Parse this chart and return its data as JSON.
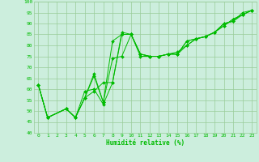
{
  "xlabel": "Humidité relative (%)",
  "bg_color": "#cceedd",
  "grid_color": "#99cc99",
  "line_color": "#00bb00",
  "xlim": [
    -0.5,
    23.5
  ],
  "ylim": [
    40,
    100
  ],
  "yticks": [
    40,
    45,
    50,
    55,
    60,
    65,
    70,
    75,
    80,
    85,
    90,
    95,
    100
  ],
  "xticks": [
    0,
    1,
    2,
    3,
    4,
    5,
    6,
    7,
    8,
    9,
    10,
    11,
    12,
    13,
    14,
    15,
    16,
    17,
    18,
    19,
    20,
    21,
    22,
    23
  ],
  "series": [
    [
      62,
      47,
      null,
      51,
      47,
      56,
      67,
      54,
      82,
      85,
      85,
      76,
      75,
      75,
      76,
      76,
      82,
      83,
      84,
      86,
      89,
      92,
      94,
      96
    ],
    [
      62,
      47,
      null,
      51,
      47,
      59,
      60,
      53,
      63,
      85,
      85,
      76,
      75,
      75,
      76,
      76,
      80,
      83,
      84,
      86,
      90,
      91,
      95,
      96
    ],
    [
      62,
      47,
      null,
      51,
      47,
      56,
      66,
      54,
      74,
      75,
      85,
      75,
      75,
      75,
      76,
      77,
      80,
      83,
      84,
      86,
      90,
      91,
      94,
      96
    ],
    [
      62,
      47,
      null,
      51,
      47,
      56,
      59,
      63,
      63,
      86,
      85,
      76,
      75,
      75,
      76,
      76,
      82,
      83,
      84,
      86,
      89,
      92,
      94,
      96
    ]
  ]
}
